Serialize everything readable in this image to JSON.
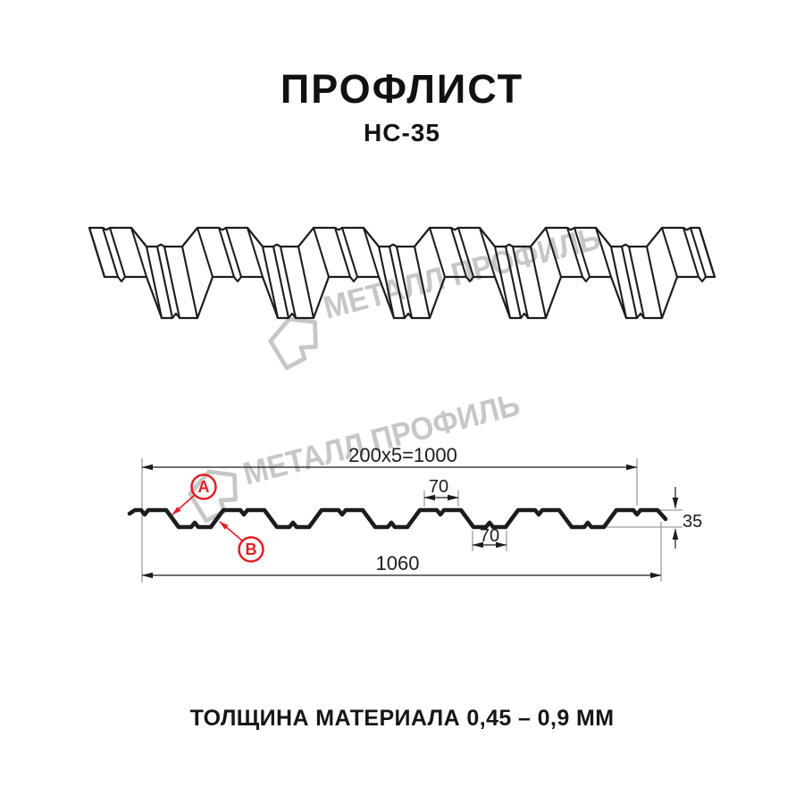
{
  "header": {
    "title": "ПРОФЛИСТ",
    "subtitle": "НС-35"
  },
  "footer": {
    "text": "ТОЛЩИНА МАТЕРИАЛА 0,45 – 0,9 ММ"
  },
  "watermark": {
    "brand": "МЕТАЛЛ ПРОФИЛЬ"
  },
  "diagram": {
    "dim_width_top": "200x5=1000",
    "dim_rib_top": "70",
    "dim_rib_bottom": "70",
    "dim_height": "35",
    "dim_width_total": "1060",
    "point_a": "A",
    "point_b": "B"
  },
  "colors": {
    "ink": "#1c1c1c",
    "red": "#e31e24",
    "watermark": "#c5c5c5"
  }
}
